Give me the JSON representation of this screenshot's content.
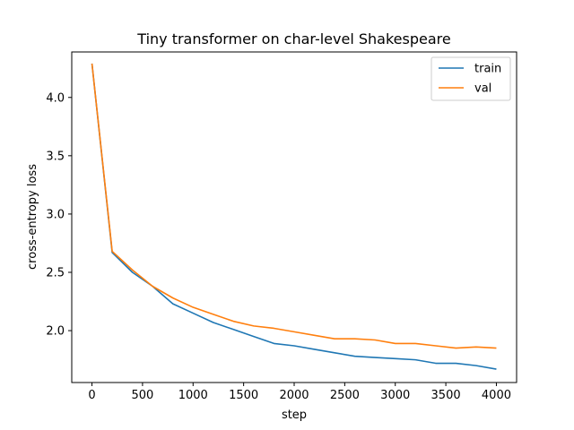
{
  "chart_data": {
    "type": "line",
    "title": "Tiny transformer on char-level Shakespeare",
    "xlabel": "step",
    "ylabel": "cross-entropy loss",
    "xlim": [
      -200,
      4200
    ],
    "ylim": [
      1.555,
      4.39
    ],
    "x_ticks": [
      0,
      500,
      1000,
      1500,
      2000,
      2500,
      3000,
      3500,
      4000
    ],
    "y_ticks": [
      2.0,
      2.5,
      3.0,
      3.5,
      4.0
    ],
    "x_tick_labels": [
      "0",
      "500",
      "1000",
      "1500",
      "2000",
      "2500",
      "3000",
      "3500",
      "4000"
    ],
    "y_tick_labels": [
      "2.0",
      "2.5",
      "3.0",
      "3.5",
      "4.0"
    ],
    "grid": false,
    "legend_position": "top-right",
    "x": [
      0,
      200,
      400,
      600,
      800,
      1000,
      1200,
      1400,
      1600,
      1800,
      2000,
      2200,
      2400,
      2600,
      2800,
      3000,
      3200,
      3400,
      3600,
      3800,
      4000
    ],
    "series": [
      {
        "name": "train",
        "color": "#1f77b4",
        "values": [
          4.29,
          2.67,
          2.5,
          2.38,
          2.23,
          2.15,
          2.07,
          2.01,
          1.95,
          1.89,
          1.87,
          1.84,
          1.81,
          1.78,
          1.77,
          1.76,
          1.75,
          1.72,
          1.72,
          1.7,
          1.67
        ]
      },
      {
        "name": "val",
        "color": "#ff7f0e",
        "values": [
          4.29,
          2.68,
          2.52,
          2.38,
          2.28,
          2.2,
          2.14,
          2.08,
          2.04,
          2.02,
          1.99,
          1.96,
          1.93,
          1.93,
          1.92,
          1.89,
          1.89,
          1.87,
          1.85,
          1.86,
          1.85
        ]
      }
    ]
  }
}
